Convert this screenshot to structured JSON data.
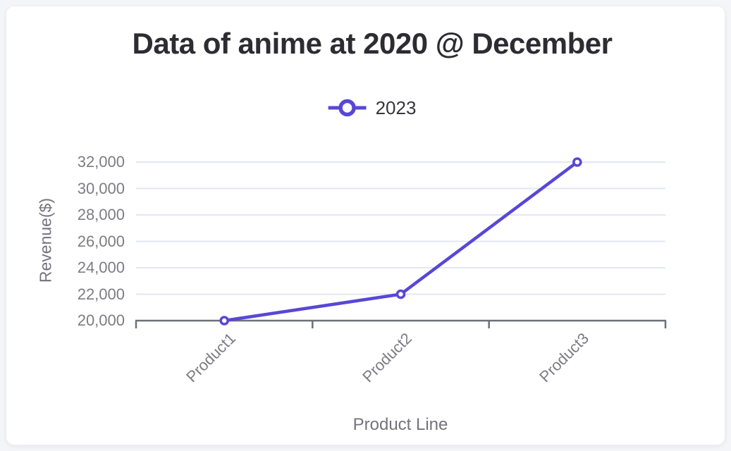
{
  "page": {
    "background_color": "#F4F5F8",
    "card_color": "#FFFFFF"
  },
  "chart_data": {
    "type": "line",
    "title": "Data of anime at 2020 @ December",
    "categories": [
      "Product1",
      "Product2",
      "Product3"
    ],
    "series": [
      {
        "name": "2023",
        "values": [
          20000,
          22000,
          32000
        ]
      }
    ],
    "xlabel": "Product Line",
    "ylabel": "Revenue($)",
    "ylim": [
      20000,
      32000
    ],
    "ytick_step": 2000,
    "ytick_labels": [
      "20,000",
      "22,000",
      "24,000",
      "26,000",
      "28,000",
      "30,000",
      "32,000"
    ],
    "grid": true,
    "legend": {
      "position": "top-center",
      "entries": [
        "2023"
      ]
    },
    "colors": {
      "line": "#5847D6",
      "marker_fill": "#FFFFFF",
      "grid": "#E3E7F3",
      "axis": "#6E7079",
      "tick_label": "#7C7C85",
      "axis_name": "#73737C",
      "title": "#2C2C32",
      "legend_text": "#36363C"
    }
  }
}
